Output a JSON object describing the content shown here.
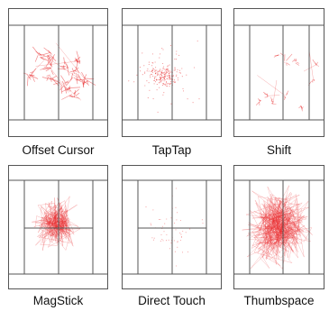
{
  "colors": {
    "frame": "#555555",
    "trace": "#e8282a",
    "background": "#ffffff",
    "caption": "#111111"
  },
  "panels": [
    {
      "caption": "Offset Cursor",
      "pattern": "clusters"
    },
    {
      "caption": "TapTap",
      "pattern": "sparse-center"
    },
    {
      "caption": "Shift",
      "pattern": "small-clusters"
    },
    {
      "caption": "MagStick",
      "pattern": "dense-center"
    },
    {
      "caption": "Direct Touch",
      "pattern": "very-sparse"
    },
    {
      "caption": "Thumbspace",
      "pattern": "dense-full"
    }
  ]
}
